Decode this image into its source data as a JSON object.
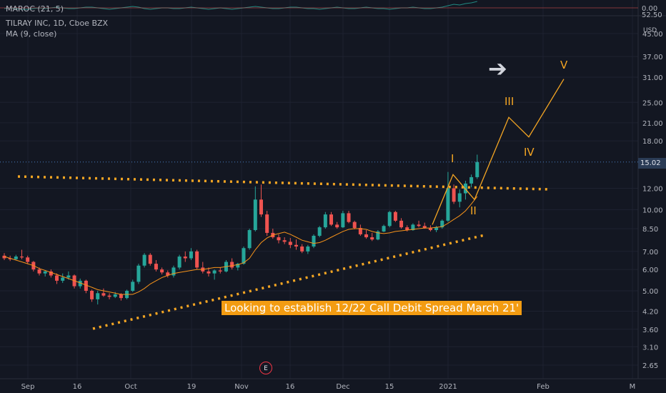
{
  "indicator": {
    "label": "MAROC (21, 5)",
    "axis_labels": [
      "0.00",
      "52.50"
    ]
  },
  "symbol": {
    "label": "TILRAY INC, 1D, Cboe BZX"
  },
  "ma": {
    "label": "MA (9, close)"
  },
  "price_axis": {
    "unit": "USD",
    "ticks": [
      "45.00",
      "37.00",
      "31.00",
      "25.00",
      "21.00",
      "18.00",
      "15.02",
      "12.00",
      "10.00",
      "8.50",
      "7.00",
      "6.00",
      "5.00",
      "4.20",
      "3.60",
      "3.10",
      "2.65"
    ],
    "current_price": "15.02"
  },
  "time_axis": {
    "ticks": [
      "Sep",
      "16",
      "Oct",
      "19",
      "Nov",
      "16",
      "Dec",
      "15",
      "2021",
      "Feb",
      "M"
    ]
  },
  "annotations": {
    "callout": "Looking to establish 12/22 Call Debit Spread March 21'",
    "waves": [
      "I",
      "II",
      "III",
      "IV",
      "V"
    ],
    "earnings": "E"
  },
  "colors": {
    "background": "#131722",
    "up": "#26a69a",
    "down": "#ef5350",
    "ma": "#f7931a",
    "annotation": "#f5a623"
  },
  "icons": {
    "forward": "right-arrow-icon",
    "earnings": "earnings-event-icon"
  },
  "chart_data": {
    "type": "candlestick",
    "scale": "log",
    "ylim": [
      2.5,
      60
    ],
    "series": [
      {
        "name": "TILRAY INC",
        "ohlc": [
          [
            6.75,
            6.9,
            6.5,
            6.6
          ],
          [
            6.6,
            6.75,
            6.45,
            6.55
          ],
          [
            6.55,
            6.8,
            6.5,
            6.7
          ],
          [
            6.7,
            7.1,
            6.55,
            6.65
          ],
          [
            6.65,
            6.75,
            6.3,
            6.4
          ],
          [
            6.4,
            6.45,
            5.9,
            6.0
          ],
          [
            6.0,
            6.1,
            5.7,
            5.8
          ],
          [
            5.8,
            5.95,
            5.65,
            5.9
          ],
          [
            5.9,
            6.0,
            5.6,
            5.7
          ],
          [
            5.7,
            5.8,
            5.3,
            5.45
          ],
          [
            5.45,
            5.8,
            5.35,
            5.6
          ],
          [
            5.6,
            5.9,
            5.5,
            5.7
          ],
          [
            5.7,
            5.75,
            5.1,
            5.2
          ],
          [
            5.2,
            5.55,
            5.1,
            5.45
          ],
          [
            5.45,
            5.5,
            4.9,
            5.0
          ],
          [
            5.0,
            5.05,
            4.55,
            4.65
          ],
          [
            4.65,
            5.0,
            4.45,
            4.9
          ],
          [
            4.9,
            5.1,
            4.75,
            4.8
          ],
          [
            4.8,
            4.9,
            4.65,
            4.75
          ],
          [
            4.75,
            4.95,
            4.7,
            4.85
          ],
          [
            4.85,
            4.9,
            4.6,
            4.7
          ],
          [
            4.7,
            5.05,
            4.65,
            5.0
          ],
          [
            5.0,
            5.5,
            4.95,
            5.4
          ],
          [
            5.4,
            6.3,
            5.3,
            6.2
          ],
          [
            6.2,
            6.9,
            6.1,
            6.8
          ],
          [
            6.8,
            6.9,
            6.2,
            6.3
          ],
          [
            6.3,
            6.5,
            5.9,
            6.0
          ],
          [
            6.0,
            6.1,
            5.75,
            5.85
          ],
          [
            5.85,
            5.95,
            5.6,
            5.7
          ],
          [
            5.7,
            6.2,
            5.6,
            6.1
          ],
          [
            6.1,
            6.8,
            6.0,
            6.7
          ],
          [
            6.7,
            7.0,
            6.4,
            6.6
          ],
          [
            6.6,
            7.2,
            6.5,
            7.0
          ],
          [
            7.0,
            7.1,
            6.0,
            6.1
          ],
          [
            6.1,
            6.4,
            5.8,
            5.9
          ],
          [
            5.9,
            6.1,
            5.65,
            5.8
          ],
          [
            5.8,
            6.0,
            5.5,
            5.95
          ],
          [
            5.95,
            6.1,
            5.8,
            5.9
          ],
          [
            5.9,
            6.5,
            5.85,
            6.4
          ],
          [
            6.4,
            6.6,
            6.0,
            6.1
          ],
          [
            6.1,
            6.35,
            5.95,
            6.3
          ],
          [
            6.3,
            7.3,
            6.25,
            7.2
          ],
          [
            7.2,
            8.5,
            7.1,
            8.4
          ],
          [
            8.4,
            12.2,
            8.3,
            10.9
          ],
          [
            10.9,
            12.4,
            9.4,
            9.6
          ],
          [
            9.6,
            9.9,
            8.0,
            8.2
          ],
          [
            8.2,
            8.5,
            7.8,
            7.9
          ],
          [
            7.9,
            8.1,
            7.5,
            7.7
          ],
          [
            7.7,
            7.9,
            7.45,
            7.6
          ],
          [
            7.6,
            7.85,
            7.2,
            7.4
          ],
          [
            7.4,
            7.75,
            7.1,
            7.3
          ],
          [
            7.3,
            7.45,
            6.9,
            7.0
          ],
          [
            7.0,
            7.4,
            6.85,
            7.3
          ],
          [
            7.3,
            8.1,
            7.2,
            8.0
          ],
          [
            8.0,
            8.7,
            7.9,
            8.6
          ],
          [
            8.6,
            9.8,
            8.5,
            9.6
          ],
          [
            9.6,
            9.8,
            8.7,
            8.8
          ],
          [
            8.8,
            9.0,
            8.5,
            8.6
          ],
          [
            8.6,
            9.9,
            8.55,
            9.7
          ],
          [
            9.7,
            9.9,
            8.9,
            9.0
          ],
          [
            9.0,
            9.1,
            8.45,
            8.55
          ],
          [
            8.55,
            8.8,
            8.0,
            8.1
          ],
          [
            8.1,
            8.4,
            7.8,
            7.9
          ],
          [
            7.9,
            8.2,
            7.65,
            7.75
          ],
          [
            7.75,
            8.4,
            7.7,
            8.3
          ],
          [
            8.3,
            8.8,
            8.25,
            8.7
          ],
          [
            8.7,
            9.9,
            8.6,
            9.8
          ],
          [
            9.8,
            9.9,
            9.0,
            9.1
          ],
          [
            9.1,
            9.3,
            8.5,
            8.6
          ],
          [
            8.6,
            8.75,
            8.3,
            8.4
          ],
          [
            8.4,
            8.9,
            8.35,
            8.8
          ],
          [
            8.8,
            9.1,
            8.6,
            8.7
          ],
          [
            8.7,
            8.95,
            8.5,
            8.55
          ],
          [
            8.55,
            8.75,
            8.3,
            8.4
          ],
          [
            8.4,
            8.7,
            8.25,
            8.6
          ],
          [
            8.6,
            9.2,
            8.5,
            9.1
          ],
          [
            9.1,
            13.8,
            9.0,
            12.0
          ],
          [
            12.0,
            12.4,
            10.5,
            10.7
          ],
          [
            10.7,
            11.9,
            10.2,
            11.5
          ],
          [
            11.5,
            12.8,
            10.9,
            12.5
          ],
          [
            12.5,
            13.5,
            12.1,
            13.2
          ],
          [
            13.2,
            16.0,
            13.0,
            15.02
          ]
        ]
      },
      {
        "name": "MA (9, close)",
        "values": [
          6.7,
          6.6,
          6.5,
          6.4,
          6.3,
          6.2,
          6.05,
          5.95,
          5.85,
          5.75,
          5.65,
          5.55,
          5.45,
          5.35,
          5.25,
          5.15,
          5.05,
          5.0,
          4.95,
          4.9,
          4.85,
          4.85,
          4.85,
          4.95,
          5.1,
          5.3,
          5.45,
          5.6,
          5.7,
          5.8,
          5.85,
          5.9,
          5.95,
          6.0,
          6.0,
          6.05,
          6.1,
          6.1,
          6.15,
          6.2,
          6.25,
          6.35,
          6.6,
          7.1,
          7.55,
          7.85,
          8.05,
          8.15,
          8.25,
          8.1,
          7.9,
          7.7,
          7.6,
          7.5,
          7.55,
          7.7,
          7.9,
          8.1,
          8.3,
          8.45,
          8.5,
          8.5,
          8.45,
          8.3,
          8.2,
          8.15,
          8.2,
          8.3,
          8.35,
          8.4,
          8.45,
          8.5,
          8.55,
          8.55,
          8.6,
          8.65,
          8.9,
          9.2,
          9.5,
          9.9,
          10.5,
          11.2
        ]
      }
    ],
    "projection": {
      "points": [
        [
          8.8,
          "I-start"
        ],
        [
          13.5,
          "I"
        ],
        [
          10.9,
          "II"
        ],
        [
          22.0,
          "III"
        ],
        [
          18.6,
          "IV"
        ],
        [
          30.5,
          "V"
        ]
      ]
    }
  }
}
